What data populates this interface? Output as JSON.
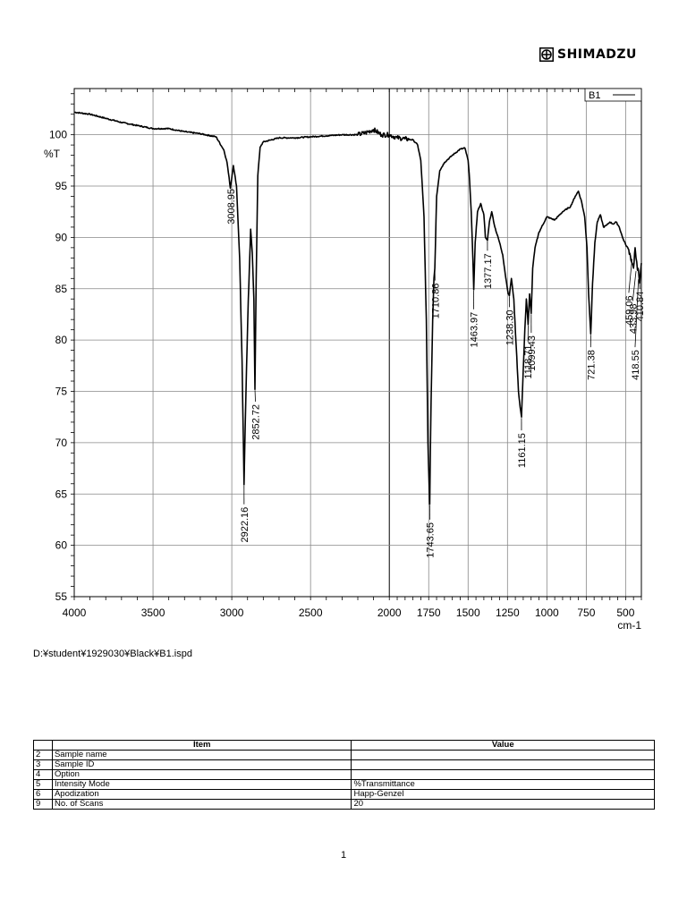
{
  "brand": {
    "name": "SHIMADZU",
    "logo_icon": "shimadzu-logo-icon"
  },
  "file_path": "D:¥student¥1929030¥Black¥B1.ispd",
  "page_number": "1",
  "table": {
    "headers": [
      "",
      "Item",
      "Value"
    ],
    "rows": [
      [
        "2",
        "Sample name",
        ""
      ],
      [
        "3",
        "Sample ID",
        ""
      ],
      [
        "4",
        "Option",
        ""
      ],
      [
        "5",
        "Intensity Mode",
        "%Transmittance"
      ],
      [
        "6",
        "Apodization",
        "Happ-Genzel"
      ],
      [
        "9",
        "No. of Scans",
        "20"
      ]
    ]
  },
  "chart_data": {
    "type": "line",
    "title": "",
    "xlabel": "cm-1",
    "ylabel": "%T",
    "xlim": [
      4000,
      400
    ],
    "ylim": [
      55,
      104.5
    ],
    "x_ticks": [
      4000,
      3500,
      3000,
      2500,
      2000,
      1750,
      1500,
      1250,
      1000,
      750,
      500
    ],
    "x_tick_labels": [
      "4000",
      "3500",
      "3000",
      "2500",
      "2000",
      "1750",
      "1500",
      "1250",
      "1000",
      "750",
      "500"
    ],
    "y_ticks": [
      55,
      60,
      65,
      70,
      75,
      80,
      85,
      90,
      95,
      100
    ],
    "y_tick_labels": [
      "55",
      "60",
      "65",
      "70",
      "75",
      "80",
      "85",
      "90",
      "95",
      "100"
    ],
    "grid": true,
    "legend": {
      "position": "top-right",
      "entries": [
        "B1"
      ]
    },
    "line_color": "#000000",
    "series": [
      {
        "name": "B1",
        "x": [
          4000,
          3900,
          3800,
          3700,
          3600,
          3500,
          3400,
          3300,
          3200,
          3100,
          3050,
          3030,
          3008.95,
          2990,
          2970,
          2950,
          2935,
          2922.16,
          2910,
          2895,
          2880,
          2870,
          2860,
          2852.72,
          2845,
          2835,
          2820,
          2800,
          2750,
          2700,
          2600,
          2500,
          2400,
          2300,
          2200,
          2150,
          2100,
          2050,
          2000,
          1950,
          1900,
          1850,
          1820,
          1800,
          1780,
          1765,
          1755,
          1743.65,
          1735,
          1725,
          1717,
          1710.86,
          1700,
          1680,
          1650,
          1600,
          1550,
          1520,
          1500,
          1490,
          1480,
          1470,
          1463.97,
          1455,
          1440,
          1420,
          1400,
          1390,
          1377.17,
          1365,
          1350,
          1330,
          1300,
          1280,
          1260,
          1245,
          1238.3,
          1225,
          1210,
          1195,
          1180,
          1170,
          1161.15,
          1150,
          1140,
          1130,
          1118.71,
          1110,
          1099.43,
          1090,
          1075,
          1050,
          1000,
          950,
          900,
          850,
          820,
          800,
          780,
          760,
          745,
          735,
          721.38,
          710,
          695,
          680,
          660,
          640,
          620,
          600,
          580,
          560,
          540,
          520,
          500,
          480,
          470,
          459.06,
          450,
          440,
          433.98,
          425,
          418.55,
          414,
          410.84,
          405,
          400
        ],
        "y": [
          102.2,
          102.0,
          101.6,
          101.2,
          100.9,
          100.6,
          100.6,
          100.3,
          100.1,
          99.8,
          98.5,
          97.3,
          94.8,
          97.0,
          95.0,
          88.0,
          78.0,
          65.9,
          75.0,
          84.0,
          90.8,
          88.5,
          84.0,
          75.2,
          86.0,
          96.0,
          98.8,
          99.3,
          99.5,
          99.7,
          99.7,
          99.8,
          99.9,
          100.0,
          100.0,
          100.2,
          100.5,
          100.0,
          100.0,
          99.7,
          99.6,
          99.5,
          99.0,
          97.5,
          92.0,
          82.0,
          70.0,
          64.0,
          74.0,
          82.0,
          86.0,
          87.0,
          94.0,
          96.5,
          97.3,
          98.0,
          98.6,
          98.7,
          97.5,
          95.5,
          92.5,
          88.0,
          84.9,
          89.5,
          92.5,
          93.3,
          92.2,
          90.0,
          89.7,
          91.5,
          92.5,
          91.0,
          89.5,
          88.3,
          86.0,
          84.5,
          84.3,
          86.0,
          84.0,
          79.5,
          75.0,
          73.5,
          72.5,
          77.0,
          81.0,
          84.0,
          81.5,
          84.5,
          82.6,
          87.0,
          89.0,
          90.5,
          92.0,
          91.7,
          92.5,
          93.0,
          94.0,
          94.5,
          93.5,
          92.0,
          89.0,
          84.5,
          80.6,
          85.5,
          89.5,
          91.5,
          92.2,
          91.0,
          91.2,
          91.5,
          91.3,
          91.5,
          91.0,
          90.0,
          89.3,
          88.8,
          88.2,
          87.5,
          87.0,
          89.0,
          88.0,
          86.8,
          86.8,
          86.0,
          85.5,
          86.7,
          87.5
        ]
      }
    ],
    "peak_labels": [
      {
        "x": 3008.95,
        "y": 94.8,
        "label": "3008.95"
      },
      {
        "x": 2922.16,
        "y": 65.9,
        "label": "2922.16"
      },
      {
        "x": 2852.72,
        "y": 75.2,
        "label": "2852.72"
      },
      {
        "x": 1743.65,
        "y": 64.0,
        "label": "1743.65"
      },
      {
        "x": 1710.86,
        "y": 87.0,
        "label": "1710.86"
      },
      {
        "x": 1463.97,
        "y": 84.9,
        "label": "1463.97"
      },
      {
        "x": 1377.17,
        "y": 89.7,
        "label": "1377.17"
      },
      {
        "x": 1238.3,
        "y": 84.3,
        "label": "1238.30"
      },
      {
        "x": 1161.15,
        "y": 72.5,
        "label": "1161.15"
      },
      {
        "x": 1118.71,
        "y": 81.5,
        "label": "1118.71"
      },
      {
        "x": 1099.43,
        "y": 82.6,
        "label": "1099.43"
      },
      {
        "x": 721.38,
        "y": 80.6,
        "label": "721.38"
      },
      {
        "x": 459.06,
        "y": 88.0,
        "label": "459.06"
      },
      {
        "x": 433.98,
        "y": 86.8,
        "label": "433.98"
      },
      {
        "x": 418.55,
        "y": 86.0,
        "label": "418.55"
      },
      {
        "x": 410.84,
        "y": 85.5,
        "label": "410.84"
      }
    ]
  }
}
